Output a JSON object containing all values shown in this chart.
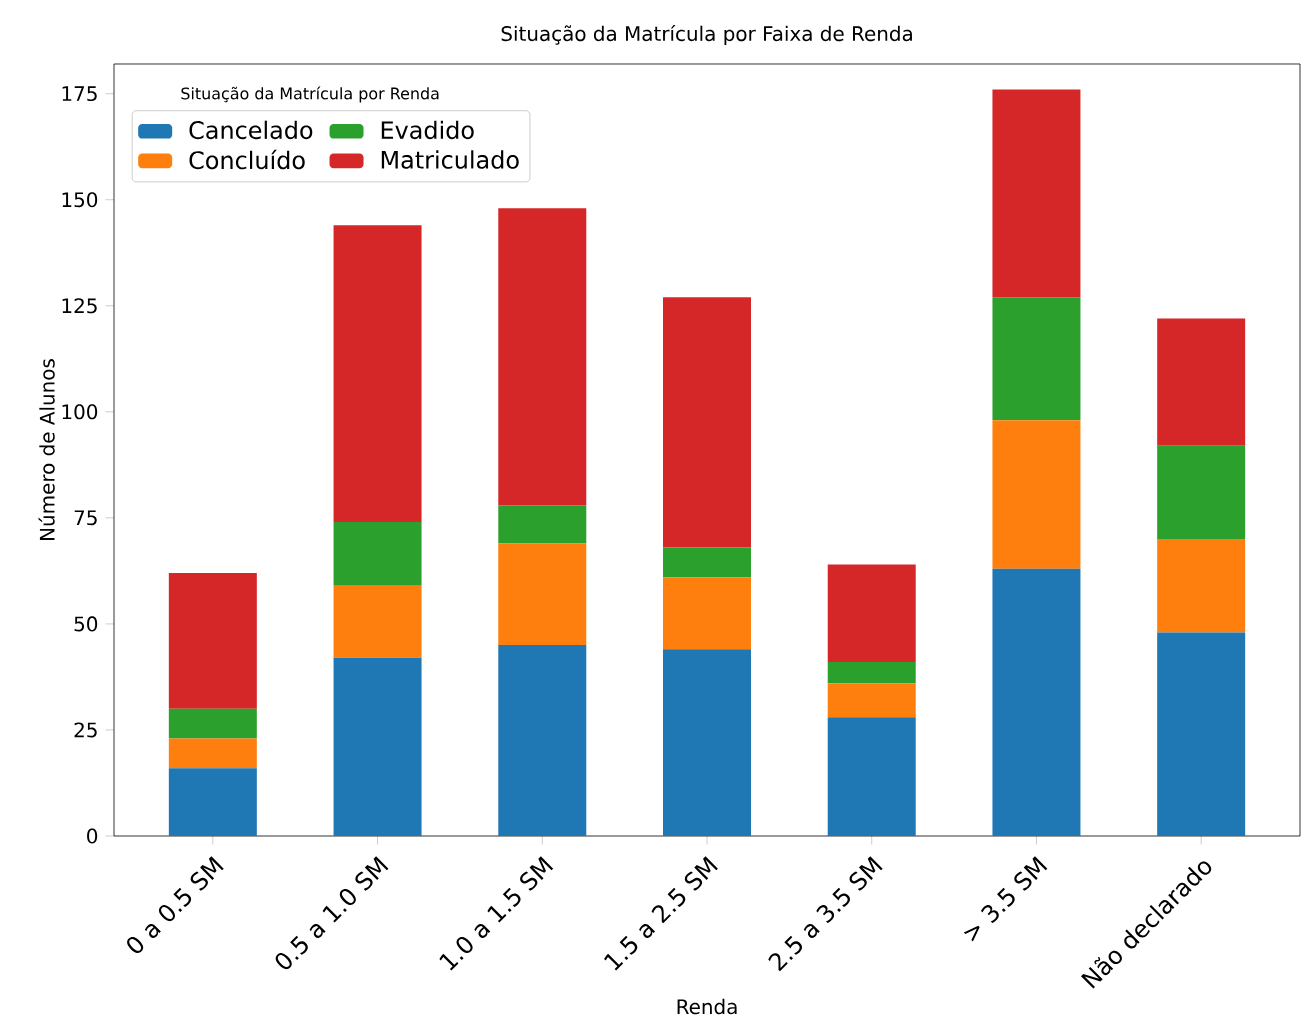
{
  "chart_data": {
    "type": "bar",
    "stacked": true,
    "title": "Situação da Matrícula por Faixa de Renda",
    "xlabel": "Renda",
    "ylabel": "Número de Alunos",
    "legend_title": "Situação da Matrícula por Renda",
    "legend": "top left",
    "grid": false,
    "categories": [
      "0 a 0.5 SM",
      "0.5 a 1.0 SM",
      "1.0 a 1.5 SM",
      "1.5 a 2.5 SM",
      "2.5 a 3.5 SM",
      "> 3.5 SM",
      "Não declarado"
    ],
    "ylim": [
      0,
      182
    ],
    "yticks": [
      0,
      25,
      50,
      75,
      100,
      125,
      150,
      175
    ],
    "series": [
      {
        "name": "Cancelado",
        "color": "#1f77b4",
        "values": [
          16,
          42,
          45,
          44,
          28,
          63,
          48
        ]
      },
      {
        "name": "Concluído",
        "color": "#ff7f0e",
        "values": [
          7,
          17,
          24,
          17,
          8,
          35,
          22
        ]
      },
      {
        "name": "Evadido",
        "color": "#2ca02c",
        "values": [
          7,
          15,
          9,
          7,
          5,
          29,
          22
        ]
      },
      {
        "name": "Matriculado",
        "color": "#d62728",
        "values": [
          32,
          70,
          70,
          59,
          23,
          49,
          30
        ]
      }
    ]
  }
}
